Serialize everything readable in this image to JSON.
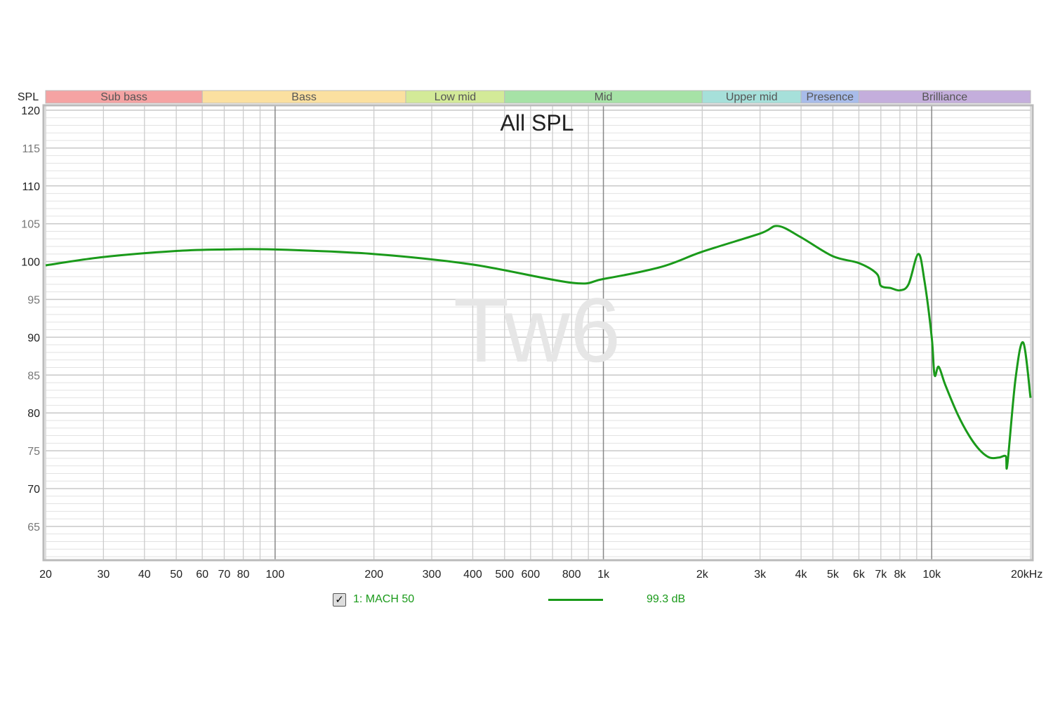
{
  "chart_data": {
    "type": "line",
    "title": "All SPL",
    "watermark": "Tw6",
    "ylabel": "SPL",
    "xlabel": "",
    "x_scale": "log",
    "xlim": [
      20,
      20000
    ],
    "ylim": [
      60.5,
      120
    ],
    "grid": true,
    "x_tick_values": [
      20,
      30,
      40,
      50,
      60,
      70,
      80,
      100,
      200,
      300,
      400,
      500,
      600,
      800,
      1000,
      2000,
      3000,
      4000,
      5000,
      6000,
      7000,
      8000,
      10000,
      20000
    ],
    "x_tick_labels": [
      "20",
      "30",
      "40",
      "50",
      "60",
      "70",
      "80",
      "100",
      "200",
      "300",
      "400",
      "500",
      "600",
      "800",
      "1k",
      "2k",
      "3k",
      "4k",
      "5k",
      "6k",
      "7k",
      "8k",
      "10k",
      "20kHz"
    ],
    "y_ticks": [
      120,
      115,
      110,
      105,
      100,
      95,
      90,
      85,
      80,
      75,
      70,
      65
    ],
    "bands": [
      {
        "label": "Sub bass",
        "from": 20,
        "to": 60,
        "color": "#f5a3a3"
      },
      {
        "label": "Bass",
        "from": 60,
        "to": 250,
        "color": "#fbe0a0"
      },
      {
        "label": "Low mid",
        "from": 250,
        "to": 500,
        "color": "#d3ea98"
      },
      {
        "label": "Mid",
        "from": 500,
        "to": 2000,
        "color": "#a6e2a6"
      },
      {
        "label": "Upper mid",
        "from": 2000,
        "to": 4000,
        "color": "#a6e0da"
      },
      {
        "label": "Presence",
        "from": 4000,
        "to": 6000,
        "color": "#a8bcea"
      },
      {
        "label": "Brilliance",
        "from": 6000,
        "to": 20000,
        "color": "#c4aedc"
      }
    ],
    "series": [
      {
        "name": "1: MACH 50",
        "color": "#1a9a1a",
        "average": "99.3 dB",
        "checked": true,
        "x": [
          20,
          30,
          50,
          70,
          100,
          200,
          400,
          800,
          1000,
          1500,
          2000,
          3000,
          3400,
          4000,
          5000,
          6000,
          6800,
          7000,
          7500,
          8000,
          8500,
          9100,
          9500,
          10000,
          10200,
          10500,
          11000,
          12000,
          13000,
          14000,
          15000,
          16000,
          16800,
          17000,
          18000,
          19000,
          20000
        ],
        "y": [
          99.5,
          100.6,
          101.4,
          101.6,
          101.6,
          101.0,
          99.6,
          97.2,
          97.7,
          99.3,
          101.3,
          103.7,
          104.7,
          103.2,
          100.7,
          99.8,
          98.4,
          96.8,
          96.5,
          96.2,
          97.0,
          101.0,
          97.5,
          90.0,
          85.0,
          86.1,
          83.7,
          79.8,
          77.0,
          75.1,
          74.1,
          74.1,
          74.3,
          73.2,
          84.5,
          89.3,
          82.0
        ]
      }
    ]
  }
}
